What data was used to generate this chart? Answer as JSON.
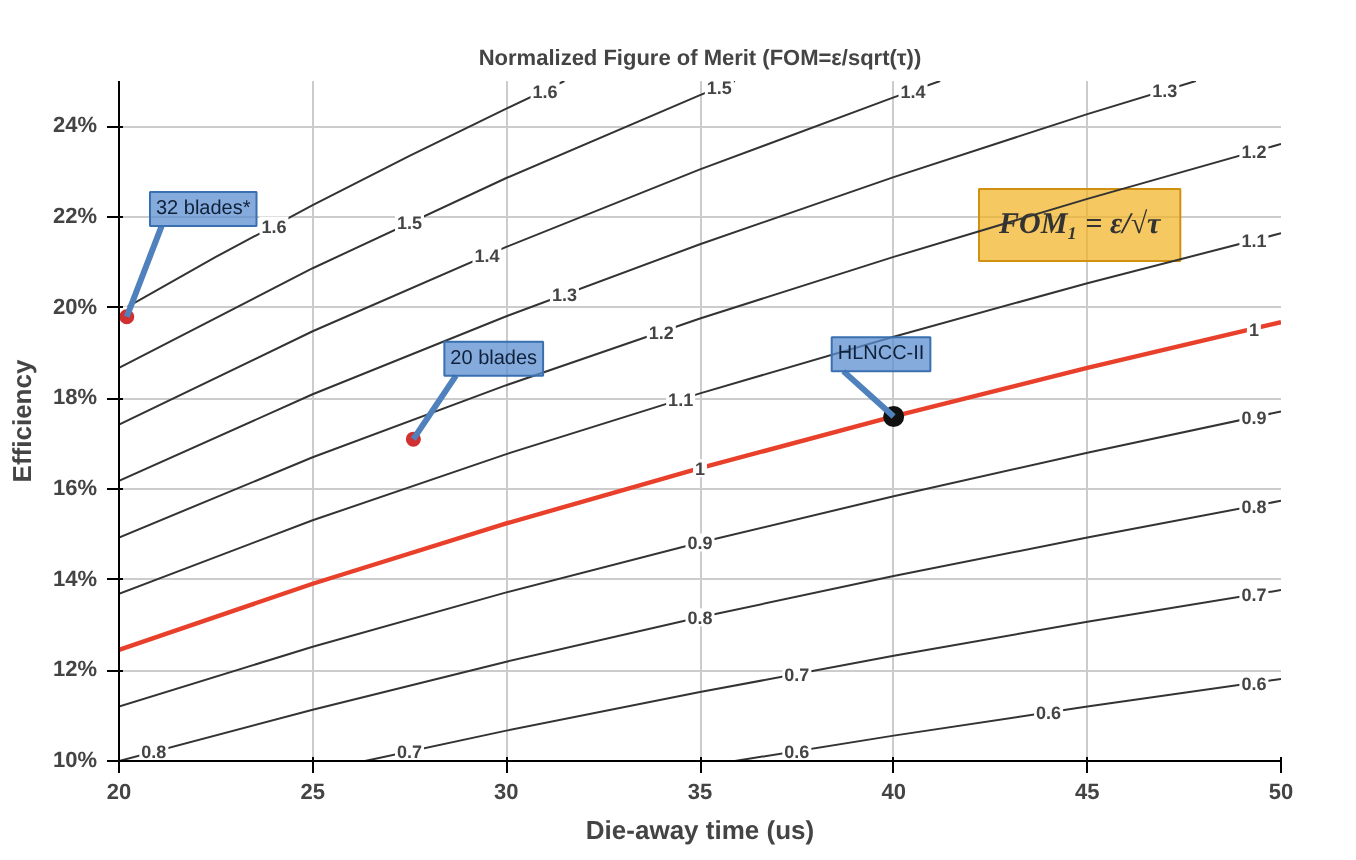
{
  "chart_data": {
    "type": "line",
    "title": "Normalized Figure of Merit (FOM=ε/sqrt(τ))",
    "xlabel": "Die-away time (us)",
    "ylabel": "Efficiency",
    "xlim": [
      20,
      50
    ],
    "xticks": [
      20,
      25,
      30,
      35,
      40,
      45,
      50
    ],
    "ylim": [
      10,
      25
    ],
    "yticks": [
      {
        "value": 10,
        "label": "10%"
      },
      {
        "value": 12,
        "label": "12%"
      },
      {
        "value": 14,
        "label": "14%"
      },
      {
        "value": 16,
        "label": "16%"
      },
      {
        "value": 18,
        "label": "18%"
      },
      {
        "value": 20,
        "label": "20%"
      },
      {
        "value": 22,
        "label": "22%"
      },
      {
        "value": 24,
        "label": "24%"
      }
    ],
    "grid": true,
    "line_style": "solid",
    "series": [
      {
        "color": "#333333",
        "x": [
          20,
          22.5,
          25,
          27.5,
          30,
          31.5
        ],
        "values": [
          19.91,
          21.12,
          22.26,
          23.35,
          24.39,
          25
        ]
      },
      {
        "color": "#333333",
        "x": [
          20,
          25,
          30,
          35,
          35.9
        ],
        "values": [
          18.67,
          20.87,
          22.86,
          24.69,
          25
        ]
      },
      {
        "color": "#333333",
        "x": [
          20,
          25,
          30,
          35,
          40,
          41.2
        ],
        "values": [
          17.42,
          19.48,
          21.34,
          23.05,
          24.64,
          25
        ]
      },
      {
        "color": "#333333",
        "x": [
          20,
          25,
          30,
          35,
          40,
          45,
          47.8
        ],
        "values": [
          16.18,
          18.09,
          19.81,
          21.4,
          22.88,
          24.27,
          25
        ]
      },
      {
        "color": "#333333",
        "x": [
          20,
          25,
          30,
          35,
          40,
          45,
          50
        ],
        "values": [
          14.93,
          16.7,
          18.29,
          19.76,
          21.12,
          22.4,
          23.61
        ]
      },
      {
        "color": "#333333",
        "x": [
          20,
          25,
          30,
          35,
          40,
          45,
          50
        ],
        "values": [
          13.69,
          15.31,
          16.77,
          18.11,
          19.36,
          20.54,
          21.64
        ]
      },
      {
        "color": "#e8402a",
        "x": [
          20,
          25,
          30,
          35,
          40,
          45,
          50
        ],
        "values": [
          12.45,
          13.91,
          15.24,
          16.46,
          17.6,
          18.67,
          19.68
        ]
      },
      {
        "color": "#333333",
        "x": [
          20,
          25,
          30,
          35,
          40,
          45,
          50
        ],
        "values": [
          11.2,
          12.52,
          13.72,
          14.82,
          15.84,
          16.8,
          17.71
        ]
      },
      {
        "color": "#333333",
        "x": [
          20,
          25,
          30,
          35,
          40,
          45,
          50
        ],
        "values": [
          10,
          11.13,
          12.19,
          13.17,
          14.08,
          14.93,
          15.74
        ]
      },
      {
        "color": "#333333",
        "x": [
          26.35,
          30,
          35,
          40,
          45,
          50
        ],
        "values": [
          10,
          10.67,
          11.52,
          12.32,
          13.07,
          13.77
        ]
      },
      {
        "color": "#333333",
        "x": [
          35.9,
          40,
          45,
          50
        ],
        "values": [
          10,
          10.56,
          11.2,
          11.81
        ]
      },
      {
        "type": "scatter",
        "color": "#d03030",
        "marker": "circle",
        "x": [
          20.2,
          27.6
        ],
        "values": [
          19.8,
          17.1
        ]
      },
      {
        "type": "scatter",
        "color": "#111111",
        "marker": "circle",
        "x": [
          40
        ],
        "values": [
          17.6
        ]
      }
    ],
    "annotations": [
      {
        "text": "32 blades*",
        "x": 20.2,
        "y": 19.8
      },
      {
        "text": "20 blades",
        "x": 27.6,
        "y": 17.1
      },
      {
        "text": "HLNCC-II",
        "x": 40,
        "y": 17.6
      },
      "FOM₁ = ε/√τ",
      {
        "text": "1.6",
        "x": 24,
        "y": 21.81
      },
      {
        "text": "1.5",
        "x": 27.5,
        "y": 21.89
      },
      {
        "text": "1.4",
        "x": 29.5,
        "y": 21.16
      },
      {
        "text": "1.3",
        "x": 31.5,
        "y": 20.3
      },
      {
        "text": "1.2",
        "x": 34,
        "y": 19.47
      },
      {
        "text": "1.1",
        "x": 34.5,
        "y": 17.98
      },
      {
        "text": "1",
        "x": 35,
        "y": 16.46
      },
      {
        "text": "0.9",
        "x": 35,
        "y": 14.82
      },
      {
        "text": "0.8",
        "x": 35,
        "y": 13.17
      },
      {
        "text": "0.7",
        "x": 37.5,
        "y": 11.93
      },
      {
        "text": "0.6",
        "x": 37.5,
        "y": 10.22
      },
      {
        "text": "0.7",
        "x": 27.5,
        "y": 10.22
      },
      {
        "text": "0.6",
        "x": 44,
        "y": 11.08
      },
      {
        "text": "0.8",
        "x": 20.9,
        "y": 10.22
      },
      {
        "text": "1.6",
        "x": 31,
        "y": 24.79
      },
      {
        "text": "1.5",
        "x": 35.5,
        "y": 24.87
      },
      {
        "text": "1.4",
        "x": 40.5,
        "y": 24.79
      },
      {
        "text": "1.3",
        "x": 47,
        "y": 24.8
      },
      {
        "text": "1.2",
        "x": 49.3,
        "y": 23.45
      },
      {
        "text": "1.1",
        "x": 49.3,
        "y": 21.49
      },
      {
        "text": "1",
        "x": 49.3,
        "y": 19.54
      },
      {
        "text": "0.9",
        "x": 49.3,
        "y": 17.59
      },
      {
        "text": "0.8",
        "x": 49.3,
        "y": 15.63
      },
      {
        "text": "0.7",
        "x": 49.3,
        "y": 13.68
      },
      {
        "text": "0.6",
        "x": 49.3,
        "y": 11.72
      }
    ]
  }
}
